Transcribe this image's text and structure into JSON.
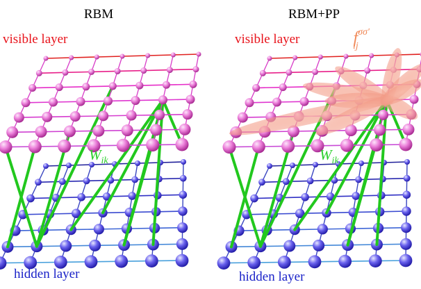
{
  "panels": [
    {
      "title": "RBM",
      "visible_layer_label": "visible layer",
      "hidden_layer_label": "hidden layer",
      "weight_label_base": "W",
      "weight_label_sub": "ik",
      "has_pair_product": false
    },
    {
      "title": "RBM+PP",
      "visible_layer_label": "visible layer",
      "hidden_layer_label": "hidden layer",
      "weight_label_base": "W",
      "weight_label_sub": "ik",
      "pp_label_base": "f",
      "pp_label_sub": "ij",
      "pp_label_sup": "σσ′",
      "has_pair_product": true
    }
  ],
  "colors": {
    "visible_label": "#e8121a",
    "hidden_label": "#1a22c8",
    "weight_label": "#2ccf2c",
    "pp_label": "#f08a5a",
    "visible_node": "#e060c8",
    "hidden_node": "#5a52e0",
    "weight_line": "#22c81e",
    "pp_blob": "#f5a090"
  }
}
